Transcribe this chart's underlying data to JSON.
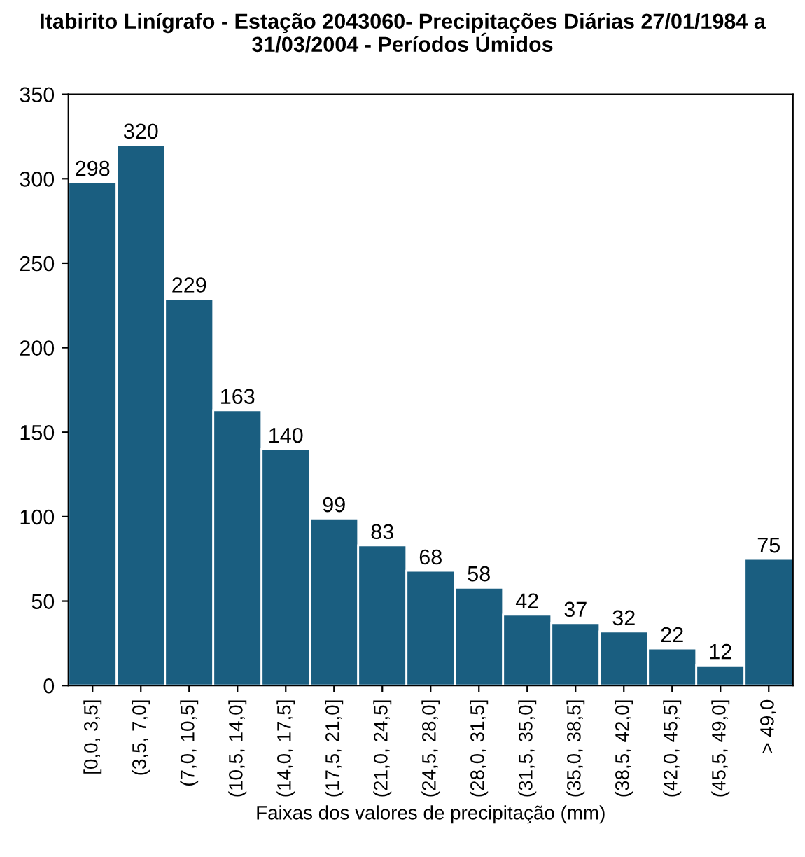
{
  "chart_data": {
    "type": "bar",
    "title": "Itabirito Linígrafo - Estação 2043060- Precipitações Diárias 27/01/1984 a 31/03/2004 - Períodos Úmidos",
    "xlabel": "Faixas dos valores de precipitação (mm)",
    "categories": [
      "[0,0, 3,5]",
      "(3,5, 7,0]",
      "(7,0, 10,5]",
      "(10,5, 14,0]",
      "(14,0, 17,5]",
      "(17,5, 21,0]",
      "(21,0, 24,5]",
      "(24,5, 28,0]",
      "(28,0, 31,5]",
      "(31,5, 35,0]",
      "(35,0, 38,5]",
      "(38,5, 42,0]",
      "(42,0, 45,5]",
      "(45,5, 49,0]",
      "> 49,0"
    ],
    "values": [
      298,
      320,
      229,
      163,
      140,
      99,
      83,
      68,
      58,
      42,
      37,
      32,
      22,
      12,
      75
    ],
    "color": "#1a5e80",
    "ylim": [
      0,
      350
    ],
    "yticks": [
      0,
      50,
      100,
      150,
      200,
      250,
      300,
      350
    ],
    "data_labels": true,
    "grid": false
  }
}
